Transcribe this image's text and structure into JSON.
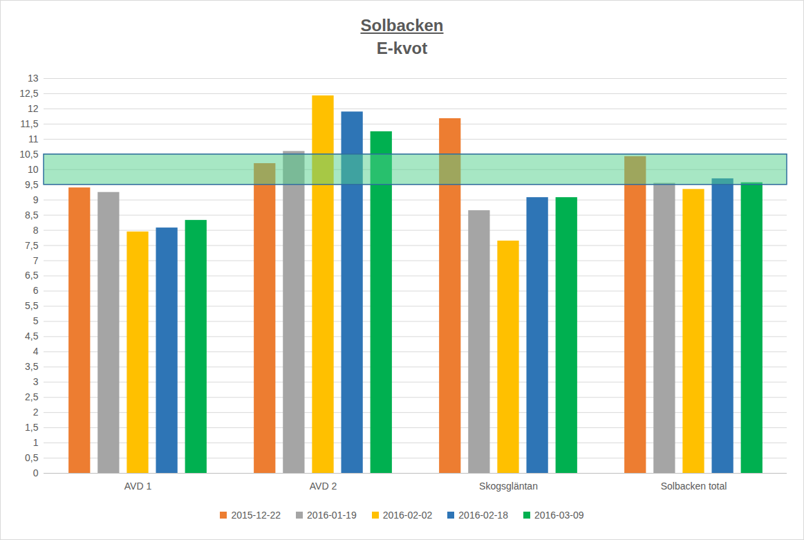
{
  "chart_data": {
    "type": "bar",
    "title": "Solbacken",
    "subtitle": "E-kvot",
    "categories": [
      "AVD 1",
      "AVD 2",
      "Skogsgläntan",
      "Solbacken total"
    ],
    "series": [
      {
        "name": "2015-12-22",
        "color": "#ED7D31",
        "values": [
          9.4,
          10.2,
          11.68,
          10.43
        ]
      },
      {
        "name": "2016-01-19",
        "color": "#A5A5A5",
        "values": [
          9.25,
          10.6,
          8.65,
          9.55
        ]
      },
      {
        "name": "2016-02-02",
        "color": "#FFC000",
        "values": [
          7.95,
          12.43,
          7.65,
          9.35
        ]
      },
      {
        "name": "2016-02-18",
        "color": "#2E75B6",
        "values": [
          8.08,
          11.9,
          9.08,
          9.7
        ]
      },
      {
        "name": "2016-03-09",
        "color": "#00B050",
        "values": [
          8.33,
          11.25,
          9.08,
          9.57
        ]
      }
    ],
    "target_range": [
      9.5,
      10.5
    ],
    "ylim": [
      0,
      13
    ],
    "yticks": [
      0,
      {
        "value": 0.5,
        "label": "0,5"
      },
      1,
      {
        "value": 1.5,
        "label": "1,5"
      },
      2,
      {
        "value": 2.5,
        "label": "2,5"
      },
      3,
      {
        "value": 3.5,
        "label": "3,5"
      },
      4,
      {
        "value": 4.5,
        "label": "4,5"
      },
      5,
      {
        "value": 5.5,
        "label": "5,5"
      },
      6,
      {
        "value": 6.5,
        "label": "6,5"
      },
      7,
      {
        "value": 7.5,
        "label": "7,5"
      },
      8,
      {
        "value": 8.5,
        "label": "8,5"
      },
      9,
      {
        "value": 9.5,
        "label": "9,5"
      },
      10,
      {
        "value": 10.5,
        "label": "10,5"
      },
      11,
      {
        "value": 11.5,
        "label": "11,5"
      },
      12,
      {
        "value": 12.5,
        "label": "12,5"
      },
      13
    ],
    "grid": true,
    "legend": "bottom"
  }
}
